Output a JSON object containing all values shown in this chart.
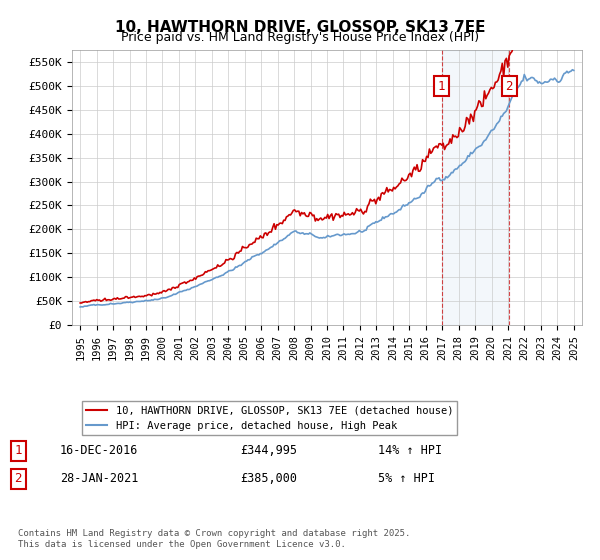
{
  "title": "10, HAWTHORN DRIVE, GLOSSOP, SK13 7EE",
  "subtitle": "Price paid vs. HM Land Registry's House Price Index (HPI)",
  "ylim": [
    0,
    575000
  ],
  "yticks": [
    0,
    50000,
    100000,
    150000,
    200000,
    250000,
    300000,
    350000,
    400000,
    450000,
    500000,
    550000
  ],
  "ytick_labels": [
    "£0",
    "£50K",
    "£100K",
    "£150K",
    "£200K",
    "£250K",
    "£300K",
    "£350K",
    "£400K",
    "£450K",
    "£500K",
    "£550K"
  ],
  "xmin_year": 1995,
  "xmax_year": 2025,
  "xticks": [
    1995,
    1996,
    1997,
    1998,
    1999,
    2000,
    2001,
    2002,
    2003,
    2004,
    2005,
    2006,
    2007,
    2008,
    2009,
    2010,
    2011,
    2012,
    2013,
    2014,
    2015,
    2016,
    2017,
    2018,
    2019,
    2020,
    2021,
    2022,
    2023,
    2024,
    2025
  ],
  "red_color": "#cc0000",
  "blue_color": "#6699cc",
  "sale1_x": 2016.96,
  "sale1_label": "1",
  "sale1_price": "£344,995",
  "sale1_date": "16-DEC-2016",
  "sale1_hpi": "14% ↑ HPI",
  "sale2_x": 2021.08,
  "sale2_label": "2",
  "sale2_price": "£385,000",
  "sale2_date": "28-JAN-2021",
  "sale2_hpi": "5% ↑ HPI",
  "legend_line1": "10, HAWTHORN DRIVE, GLOSSOP, SK13 7EE (detached house)",
  "legend_line2": "HPI: Average price, detached house, High Peak",
  "footnote": "Contains HM Land Registry data © Crown copyright and database right 2025.\nThis data is licensed under the Open Government Licence v3.0.",
  "background_color": "#ffffff",
  "plot_bg_color": "#ffffff",
  "grid_color": "#cccccc"
}
